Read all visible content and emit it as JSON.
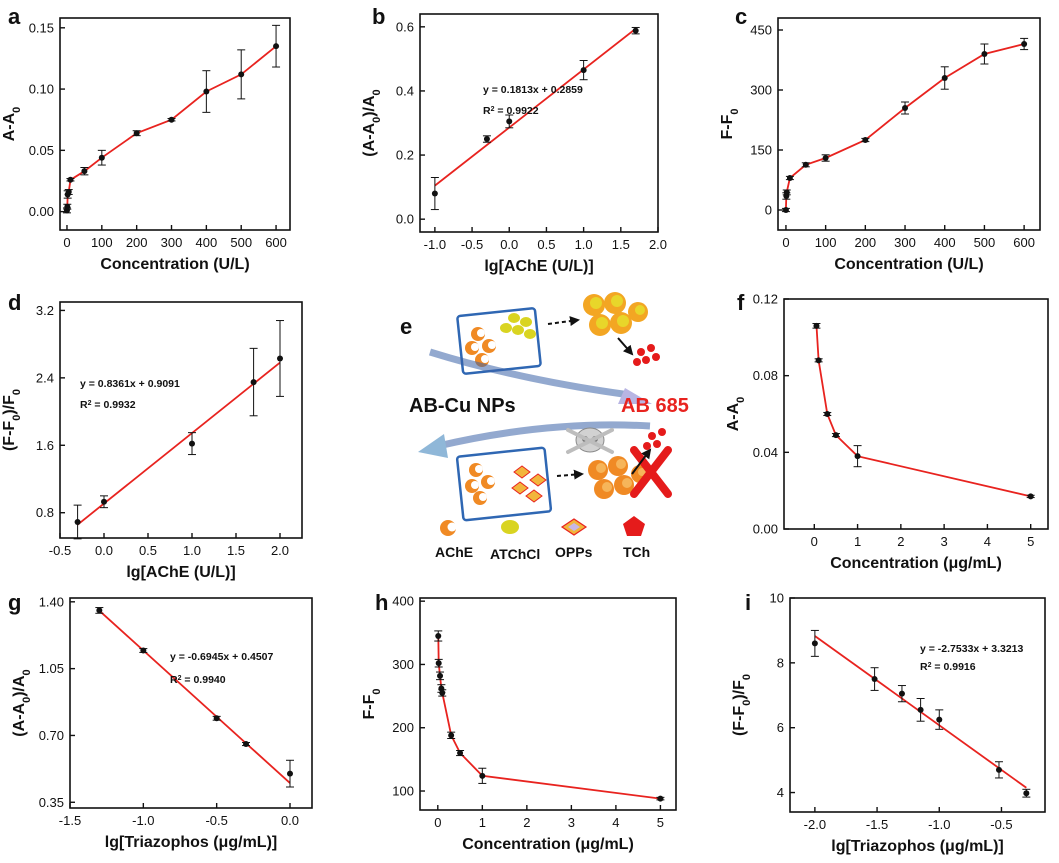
{
  "figure": {
    "colors": {
      "line": "#e8231f",
      "marker": "#111111",
      "axis": "#111111",
      "red_text": "#e8231f"
    }
  },
  "chart_data": [
    {
      "id": "a",
      "panel_label": "a",
      "type": "line",
      "xlabel": "Concentration (U/L)",
      "ylabel": "A-A0",
      "xlim": [
        -20,
        640
      ],
      "ylim": [
        -0.015,
        0.158
      ],
      "xticks": [
        0,
        100,
        200,
        300,
        400,
        500,
        600
      ],
      "xtick_labels": [
        "0",
        "100",
        "200",
        "300",
        "400",
        "500",
        "600"
      ],
      "yticks": [
        0,
        0.05,
        0.1,
        0.15
      ],
      "ytick_labels": [
        "0.00",
        "0.05",
        "0.10",
        "0.15"
      ],
      "points": [
        {
          "x": 0,
          "y": 0.001,
          "err": 0.002
        },
        {
          "x": 1,
          "y": 0.004,
          "err": 0.002
        },
        {
          "x": 2,
          "y": 0.014,
          "err": 0.003
        },
        {
          "x": 5,
          "y": 0.016,
          "err": 0.002
        },
        {
          "x": 10,
          "y": 0.026,
          "err": 0.001
        },
        {
          "x": 50,
          "y": 0.033,
          "err": 0.003
        },
        {
          "x": 100,
          "y": 0.044,
          "err": 0.006
        },
        {
          "x": 200,
          "y": 0.064,
          "err": 0.002
        },
        {
          "x": 300,
          "y": 0.075,
          "err": 0.001
        },
        {
          "x": 400,
          "y": 0.098,
          "err": 0.017
        },
        {
          "x": 500,
          "y": 0.112,
          "err": 0.02
        },
        {
          "x": 600,
          "y": 0.135,
          "err": 0.017
        }
      ]
    },
    {
      "id": "b",
      "panel_label": "b",
      "type": "scatter",
      "xlabel": "lg[AChE (U/L)]",
      "ylabel": "(A-A0)/A0",
      "xlim": [
        -1.2,
        2.0
      ],
      "ylim": [
        -0.04,
        0.64
      ],
      "xticks": [
        -1.0,
        -0.5,
        0.0,
        0.5,
        1.0,
        1.5,
        2.0
      ],
      "xtick_labels": [
        "-1.0",
        "-0.5",
        "0.0",
        "0.5",
        "1.0",
        "1.5",
        "2.0"
      ],
      "yticks": [
        0,
        0.2,
        0.4,
        0.6
      ],
      "ytick_labels": [
        "0.0",
        "0.2",
        "0.4",
        "0.6"
      ],
      "points": [
        {
          "x": -1.0,
          "y": 0.08,
          "err": 0.05
        },
        {
          "x": -0.3,
          "y": 0.25,
          "err": 0.01
        },
        {
          "x": 0.0,
          "y": 0.305,
          "err": 0.02
        },
        {
          "x": 1.0,
          "y": 0.465,
          "err": 0.03
        },
        {
          "x": 1.7,
          "y": 0.588,
          "err": 0.01
        }
      ],
      "fit": {
        "slope": 0.1813,
        "intercept": 0.2859,
        "x_range": [
          -1.0,
          1.7
        ]
      },
      "equation": "y = 0.1813x + 0.2859",
      "r2_value": "= 0.9922"
    },
    {
      "id": "c",
      "panel_label": "c",
      "type": "line",
      "xlabel": "Concentration (U/L)",
      "ylabel": "F-F0",
      "xlim": [
        -20,
        640
      ],
      "ylim": [
        -50,
        480
      ],
      "xticks": [
        0,
        100,
        200,
        300,
        400,
        500,
        600
      ],
      "xtick_labels": [
        "0",
        "100",
        "200",
        "300",
        "400",
        "500",
        "600"
      ],
      "yticks": [
        0,
        150,
        300,
        450
      ],
      "ytick_labels": [
        "0",
        "150",
        "300",
        "450"
      ],
      "points": [
        {
          "x": 0,
          "y": 0,
          "err": 4
        },
        {
          "x": 1,
          "y": 35,
          "err": 8
        },
        {
          "x": 2,
          "y": 44,
          "err": 6
        },
        {
          "x": 10,
          "y": 80,
          "err": 4
        },
        {
          "x": 50,
          "y": 113,
          "err": 5
        },
        {
          "x": 100,
          "y": 130,
          "err": 8
        },
        {
          "x": 200,
          "y": 175,
          "err": 4
        },
        {
          "x": 300,
          "y": 255,
          "err": 15
        },
        {
          "x": 400,
          "y": 330,
          "err": 28
        },
        {
          "x": 500,
          "y": 390,
          "err": 25
        },
        {
          "x": 600,
          "y": 415,
          "err": 14
        }
      ]
    },
    {
      "id": "d",
      "panel_label": "d",
      "type": "scatter",
      "xlabel": "lg[AChE (U/L)]",
      "ylabel": "(F-F0)/F0",
      "xlim": [
        -0.5,
        2.25
      ],
      "ylim": [
        0.5,
        3.3
      ],
      "xticks": [
        -0.5,
        0.0,
        0.5,
        1.0,
        1.5,
        2.0
      ],
      "xtick_labels": [
        "-0.5",
        "0.0",
        "0.5",
        "1.0",
        "1.5",
        "2.0"
      ],
      "yticks": [
        0.8,
        1.6,
        2.4,
        3.2
      ],
      "ytick_labels": [
        "0.8",
        "1.6",
        "2.4",
        "3.2"
      ],
      "points": [
        {
          "x": -0.3,
          "y": 0.69,
          "err": 0.2
        },
        {
          "x": 0.0,
          "y": 0.93,
          "err": 0.07
        },
        {
          "x": 1.0,
          "y": 1.62,
          "err": 0.13
        },
        {
          "x": 1.7,
          "y": 2.35,
          "err": 0.4
        },
        {
          "x": 2.0,
          "y": 2.63,
          "err": 0.45
        }
      ],
      "fit": {
        "slope": 0.8361,
        "intercept": 0.9091,
        "x_range": [
          -0.3,
          2.0
        ]
      },
      "equation": "y = 0.8361x + 0.9091",
      "r2_value": "= 0.9932"
    },
    {
      "id": "f",
      "panel_label": "f",
      "type": "line",
      "xlabel": "Concentration (μg/mL)",
      "ylabel": "A-A0",
      "xlim": [
        -0.7,
        5.4
      ],
      "ylim": [
        0.0,
        0.12
      ],
      "xticks": [
        0,
        1,
        2,
        3,
        4,
        5
      ],
      "xtick_labels": [
        "0",
        "1",
        "2",
        "3",
        "4",
        "5"
      ],
      "yticks": [
        0.0,
        0.04,
        0.08,
        0.12
      ],
      "ytick_labels": [
        "0.00",
        "0.04",
        "0.08",
        "0.12"
      ],
      "points": [
        {
          "x": 0.05,
          "y": 0.106,
          "err": 0.0012
        },
        {
          "x": 0.1,
          "y": 0.088,
          "err": 0.0008
        },
        {
          "x": 0.3,
          "y": 0.06,
          "err": 0.0008
        },
        {
          "x": 0.5,
          "y": 0.049,
          "err": 0.0008
        },
        {
          "x": 1.0,
          "y": 0.038,
          "err": 0.0055
        },
        {
          "x": 5.0,
          "y": 0.017,
          "err": 0.0006
        }
      ]
    },
    {
      "id": "g",
      "panel_label": "g",
      "type": "scatter",
      "xlabel": "lg[Triazophos (μg/mL)]",
      "ylabel": "(A-A0)/A0",
      "xlim": [
        -1.5,
        0.15
      ],
      "ylim": [
        0.32,
        1.42
      ],
      "xticks": [
        -1.5,
        -1.0,
        -0.5,
        0.0
      ],
      "xtick_labels": [
        "-1.5",
        "-1.0",
        "-0.5",
        "0.0"
      ],
      "yticks": [
        0.35,
        0.7,
        1.05,
        1.4
      ],
      "ytick_labels": [
        "0.35",
        "0.70",
        "1.05",
        "1.40"
      ],
      "points": [
        {
          "x": -1.3,
          "y": 1.355,
          "err": 0.015
        },
        {
          "x": -1.0,
          "y": 1.145,
          "err": 0.01
        },
        {
          "x": -0.5,
          "y": 0.79,
          "err": 0.01
        },
        {
          "x": -0.3,
          "y": 0.655,
          "err": 0.008
        },
        {
          "x": 0.0,
          "y": 0.5,
          "err": 0.07
        }
      ],
      "fit": {
        "slope": -0.6945,
        "intercept": 0.4507,
        "x_range": [
          -1.3,
          0.0
        ]
      },
      "equation": "y = -0.6945x + 0.4507",
      "r2_value": "= 0.9940"
    },
    {
      "id": "h",
      "panel_label": "h",
      "type": "line",
      "xlabel": "Concentration (μg/mL)",
      "ylabel": "F-F0",
      "xlim": [
        -0.4,
        5.35
      ],
      "ylim": [
        70,
        405
      ],
      "xticks": [
        0,
        1,
        2,
        3,
        4,
        5
      ],
      "xtick_labels": [
        "0",
        "1",
        "2",
        "3",
        "4",
        "5"
      ],
      "yticks": [
        100,
        200,
        300,
        400
      ],
      "ytick_labels": [
        "100",
        "200",
        "300",
        "400"
      ],
      "points": [
        {
          "x": 0.01,
          "y": 345,
          "err": 8
        },
        {
          "x": 0.02,
          "y": 302,
          "err": 6
        },
        {
          "x": 0.05,
          "y": 282,
          "err": 6
        },
        {
          "x": 0.08,
          "y": 262,
          "err": 6
        },
        {
          "x": 0.1,
          "y": 255,
          "err": 5
        },
        {
          "x": 0.3,
          "y": 188,
          "err": 5
        },
        {
          "x": 0.5,
          "y": 160,
          "err": 4
        },
        {
          "x": 1.0,
          "y": 124,
          "err": 12
        },
        {
          "x": 5.0,
          "y": 88,
          "err": 2
        }
      ]
    },
    {
      "id": "i",
      "panel_label": "i",
      "type": "scatter",
      "xlabel": "lg[Triazophos (μg/mL)]",
      "ylabel": "(F-F0)/F0",
      "xlim": [
        -2.2,
        -0.15
      ],
      "ylim": [
        3.4,
        10.0
      ],
      "xticks": [
        -2.0,
        -1.5,
        -1.0,
        -0.5
      ],
      "xtick_labels": [
        "-2.0",
        "-1.5",
        "-1.0",
        "-0.5"
      ],
      "yticks": [
        4,
        6,
        8,
        10
      ],
      "ytick_labels": [
        "4",
        "6",
        "8",
        "10"
      ],
      "points": [
        {
          "x": -2.0,
          "y": 8.6,
          "err": 0.4
        },
        {
          "x": -1.52,
          "y": 7.5,
          "err": 0.35
        },
        {
          "x": -1.3,
          "y": 7.05,
          "err": 0.25
        },
        {
          "x": -1.15,
          "y": 6.55,
          "err": 0.35
        },
        {
          "x": -1.0,
          "y": 6.25,
          "err": 0.3
        },
        {
          "x": -0.52,
          "y": 4.7,
          "err": 0.25
        },
        {
          "x": -0.3,
          "y": 3.98,
          "err": 0.12
        }
      ],
      "fit": {
        "slope": -2.7533,
        "intercept": 3.3213,
        "x_range": [
          -2.0,
          -0.3
        ]
      },
      "equation": "y = -2.7533x + 3.3213",
      "r2_value": "= 0.9916"
    }
  ],
  "schematic": {
    "panel_label": "e",
    "left_label": "AB-Cu NPs",
    "right_label": "AB 685",
    "legend": [
      {
        "label": "AChE",
        "color": "#f08a24"
      },
      {
        "label": "ATChCl",
        "color": "#d9d421"
      },
      {
        "label": "OPPs",
        "color": "#f2b53c"
      },
      {
        "label": "TCh",
        "color": "#e51b1b"
      }
    ]
  }
}
